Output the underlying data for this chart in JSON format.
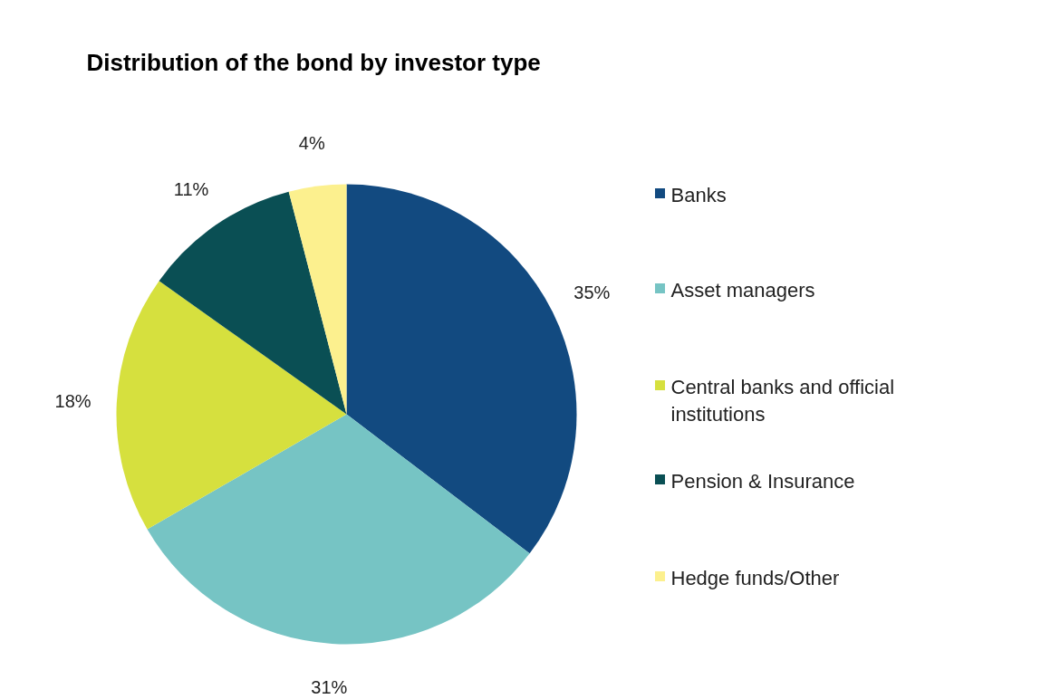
{
  "chart_data": {
    "type": "pie",
    "title": "Distribution of the bond by investor type",
    "categories": [
      "Banks",
      "Asset managers",
      "Central banks and official institutions",
      "Pension & Insurance",
      "Hedge funds/Other"
    ],
    "values": [
      35,
      31,
      18,
      11,
      4
    ],
    "colors": [
      "#124a80",
      "#76c4c4",
      "#d6e03e",
      "#0a4f54",
      "#fcf08e"
    ],
    "value_labels": [
      "35%",
      "31%",
      "18%",
      "11%",
      "4%"
    ],
    "legend": "right"
  }
}
